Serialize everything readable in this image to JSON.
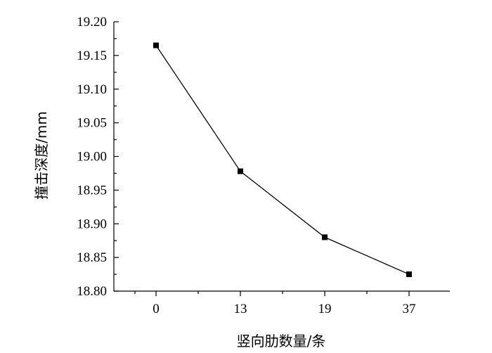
{
  "chart_data": {
    "type": "line",
    "categories": [
      "0",
      "13",
      "19",
      "37"
    ],
    "values": [
      19.165,
      18.978,
      18.88,
      18.825
    ],
    "xlabel": "竖向肋数量/条",
    "ylabel": "撞击深度/mm",
    "ylim": [
      18.8,
      19.2
    ],
    "yticks": [
      "18.80",
      "18.85",
      "18.90",
      "18.95",
      "19.00",
      "19.05",
      "19.10",
      "19.15",
      "19.20"
    ],
    "grid": false,
    "marker": "square",
    "line_color": "#000000"
  }
}
